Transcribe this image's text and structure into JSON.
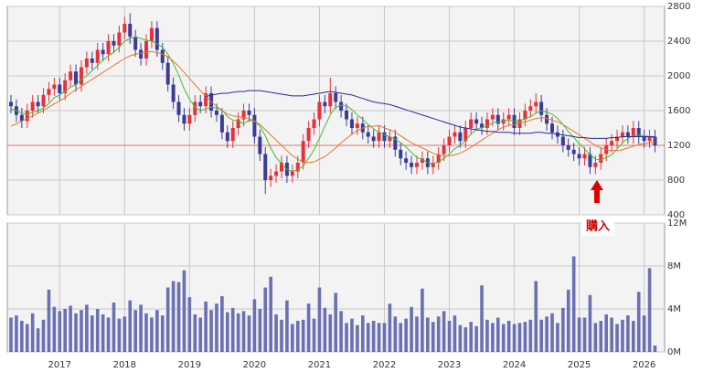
{
  "chart_data": [
    {
      "type": "candlestick",
      "categories": [
        null,
        null,
        null,
        null,
        null,
        null,
        null,
        null,
        null,
        "2017",
        null,
        null,
        null,
        null,
        null,
        null,
        null,
        null,
        null,
        null,
        null,
        "2018",
        null,
        null,
        null,
        null,
        null,
        null,
        null,
        null,
        null,
        null,
        null,
        "2019",
        null,
        null,
        null,
        null,
        null,
        null,
        null,
        null,
        null,
        null,
        null,
        "2020",
        null,
        null,
        null,
        null,
        null,
        null,
        null,
        null,
        null,
        null,
        null,
        "2021",
        null,
        null,
        null,
        null,
        null,
        null,
        null,
        null,
        null,
        null,
        null,
        "2022",
        null,
        null,
        null,
        null,
        null,
        null,
        null,
        null,
        null,
        null,
        null,
        "2023",
        null,
        null,
        null,
        null,
        null,
        null,
        null,
        null,
        null,
        null,
        null,
        "2024",
        null,
        null,
        null,
        null,
        null,
        null,
        null,
        null,
        null,
        null,
        null,
        "2025",
        null,
        null,
        null,
        null,
        null,
        null,
        null,
        null,
        null,
        null,
        null,
        "2026",
        null,
        null
      ],
      "open": [
        1700,
        1650,
        1550,
        1480,
        1600,
        1700,
        1650,
        1780,
        1850,
        1900,
        1800,
        1950,
        2050,
        1900,
        2100,
        2200,
        2150,
        2300,
        2250,
        2400,
        2350,
        2500,
        2600,
        2450,
        2300,
        2200,
        2400,
        2550,
        2300,
        2150,
        1900,
        1700,
        1550,
        1450,
        1550,
        1700,
        1650,
        1800,
        1600,
        1550,
        1350,
        1250,
        1400,
        1500,
        1600,
        1550,
        1300,
        1100,
        800,
        850,
        900,
        1000,
        850,
        900,
        1000,
        1250,
        1400,
        1500,
        1700,
        1650,
        1800,
        1700,
        1600,
        1500,
        1400,
        1450,
        1350,
        1300,
        1250,
        1350,
        1250,
        1300,
        1150,
        1050,
        1000,
        950,
        1000,
        1050,
        950,
        1000,
        1100,
        1200,
        1300,
        1350,
        1250,
        1400,
        1500,
        1450,
        1400,
        1500,
        1550,
        1450,
        1500,
        1550,
        1400,
        1500,
        1600,
        1650,
        1700,
        1550,
        1450,
        1350,
        1300,
        1200,
        1150,
        1100,
        1050,
        1100,
        950,
        1000,
        1100,
        1200,
        1250,
        1300,
        1350,
        1300,
        1400,
        1300,
        1250,
        1300
      ],
      "high": [
        1780,
        1730,
        1630,
        1680,
        1780,
        1780,
        1860,
        1930,
        1980,
        1980,
        2030,
        2130,
        2130,
        2180,
        2280,
        2280,
        2380,
        2380,
        2480,
        2480,
        2580,
        2680,
        2720,
        2530,
        2380,
        2480,
        2630,
        2630,
        2380,
        2230,
        1980,
        1780,
        1630,
        1630,
        1780,
        1780,
        1880,
        1880,
        1680,
        1630,
        1430,
        1480,
        1580,
        1680,
        1680,
        1630,
        1380,
        1180,
        930,
        980,
        1080,
        1080,
        980,
        1080,
        1330,
        1480,
        1580,
        1780,
        1780,
        1980,
        1880,
        1780,
        1680,
        1580,
        1530,
        1530,
        1430,
        1380,
        1430,
        1430,
        1380,
        1380,
        1230,
        1130,
        1080,
        1080,
        1130,
        1130,
        1080,
        1180,
        1280,
        1380,
        1430,
        1430,
        1480,
        1580,
        1580,
        1530,
        1580,
        1630,
        1630,
        1580,
        1630,
        1630,
        1580,
        1680,
        1730,
        1800,
        1780,
        1630,
        1530,
        1430,
        1380,
        1280,
        1230,
        1180,
        1180,
        1180,
        1080,
        1180,
        1280,
        1330,
        1380,
        1430,
        1430,
        1480,
        1480,
        1380,
        1380,
        1380
      ],
      "low": [
        1570,
        1470,
        1400,
        1400,
        1520,
        1570,
        1570,
        1700,
        1770,
        1720,
        1720,
        1870,
        1820,
        1820,
        2020,
        2070,
        2070,
        2170,
        2170,
        2270,
        2270,
        2420,
        2370,
        2220,
        2120,
        2120,
        2320,
        2220,
        2070,
        1820,
        1620,
        1470,
        1370,
        1370,
        1470,
        1570,
        1570,
        1520,
        1470,
        1270,
        1170,
        1170,
        1320,
        1420,
        1470,
        1220,
        1020,
        640,
        720,
        770,
        820,
        770,
        770,
        820,
        920,
        1170,
        1320,
        1420,
        1570,
        1570,
        1620,
        1520,
        1420,
        1320,
        1320,
        1270,
        1220,
        1170,
        1170,
        1170,
        1170,
        1070,
        970,
        920,
        870,
        870,
        920,
        870,
        870,
        920,
        1020,
        1120,
        1220,
        1170,
        1170,
        1320,
        1370,
        1320,
        1320,
        1420,
        1370,
        1370,
        1420,
        1320,
        1320,
        1420,
        1520,
        1570,
        1470,
        1370,
        1270,
        1220,
        1120,
        1070,
        1020,
        970,
        970,
        870,
        870,
        920,
        1020,
        1120,
        1170,
        1220,
        1220,
        1220,
        1220,
        1170,
        1170,
        1120
      ],
      "close": [
        1650,
        1550,
        1480,
        1600,
        1700,
        1650,
        1780,
        1850,
        1900,
        1800,
        1950,
        2050,
        1900,
        2100,
        2200,
        2150,
        2300,
        2250,
        2400,
        2350,
        2500,
        2600,
        2450,
        2300,
        2200,
        2400,
        2550,
        2300,
        2150,
        1900,
        1700,
        1550,
        1450,
        1550,
        1700,
        1650,
        1800,
        1600,
        1550,
        1350,
        1250,
        1400,
        1500,
        1600,
        1550,
        1300,
        1100,
        800,
        850,
        900,
        1000,
        850,
        900,
        1000,
        1250,
        1400,
        1500,
        1700,
        1650,
        1800,
        1700,
        1600,
        1500,
        1400,
        1450,
        1350,
        1300,
        1250,
        1350,
        1250,
        1300,
        1150,
        1050,
        1000,
        950,
        1000,
        1050,
        950,
        1000,
        1100,
        1200,
        1300,
        1350,
        1250,
        1400,
        1500,
        1450,
        1400,
        1500,
        1550,
        1450,
        1500,
        1550,
        1400,
        1500,
        1600,
        1650,
        1700,
        1550,
        1450,
        1350,
        1300,
        1200,
        1150,
        1100,
        1050,
        1100,
        950,
        1000,
        1100,
        1200,
        1250,
        1300,
        1350,
        1300,
        1400,
        1300,
        1250,
        1300,
        1200
      ],
      "up_color": "#e8303a",
      "down_color": "#3b3b9b",
      "moving_averages": [
        {
          "color": "#3fbf2f",
          "values": [
            1620,
            1600,
            1570,
            1560,
            1580,
            1600,
            1630,
            1680,
            1750,
            1780,
            1820,
            1870,
            1900,
            1960,
            2000,
            2060,
            2120,
            2180,
            2230,
            2270,
            2330,
            2400,
            2430,
            2450,
            2430,
            2410,
            2400,
            2370,
            2330,
            2250,
            2140,
            2010,
            1850,
            1730,
            1640,
            1600,
            1620,
            1640,
            1630,
            1610,
            1530,
            1490,
            1480,
            1450,
            1490,
            1480,
            1420,
            1310,
            1170,
            1060,
            990,
            920,
            900,
            920,
            960,
            1050,
            1150,
            1280,
            1420,
            1550,
            1640,
            1660,
            1660,
            1610,
            1550,
            1500,
            1440,
            1390,
            1350,
            1320,
            1300,
            1270,
            1230,
            1180,
            1120,
            1060,
            1040,
            1000,
            990,
            1010,
            1050,
            1100,
            1160,
            1200,
            1260,
            1330,
            1380,
            1410,
            1420,
            1460,
            1470,
            1480,
            1490,
            1480,
            1480,
            1510,
            1530,
            1570,
            1600,
            1580,
            1560,
            1510,
            1440,
            1360,
            1290,
            1220,
            1160,
            1090,
            1040,
            1030,
            1060,
            1090,
            1160,
            1230,
            1280,
            1310,
            1320,
            1310,
            1300,
            1280
          ]
        },
        {
          "color": "#e8772e",
          "values": [
            1420,
            1450,
            1480,
            1510,
            1540,
            1570,
            1600,
            1640,
            1680,
            1710,
            1750,
            1800,
            1840,
            1880,
            1920,
            1960,
            2000,
            2040,
            2080,
            2120,
            2160,
            2200,
            2230,
            2250,
            2260,
            2270,
            2280,
            2270,
            2250,
            2220,
            2170,
            2110,
            2040,
            1970,
            1900,
            1830,
            1770,
            1700,
            1650,
            1600,
            1560,
            1540,
            1530,
            1520,
            1510,
            1480,
            1440,
            1380,
            1320,
            1260,
            1200,
            1140,
            1080,
            1040,
            1010,
            1000,
            1010,
            1040,
            1070,
            1120,
            1170,
            1230,
            1280,
            1330,
            1370,
            1400,
            1420,
            1420,
            1430,
            1400,
            1380,
            1350,
            1310,
            1270,
            1230,
            1200,
            1170,
            1140,
            1110,
            1090,
            1080,
            1080,
            1090,
            1110,
            1140,
            1180,
            1220,
            1260,
            1300,
            1340,
            1380,
            1410,
            1430,
            1440,
            1460,
            1470,
            1490,
            1510,
            1520,
            1510,
            1490,
            1470,
            1440,
            1400,
            1360,
            1320,
            1280,
            1240,
            1200,
            1170,
            1150,
            1140,
            1140,
            1150,
            1170,
            1190,
            1210,
            1220,
            1230,
            1240
          ]
        },
        {
          "color": "#2a2a9a",
          "values": [
            null,
            null,
            null,
            null,
            null,
            null,
            null,
            null,
            null,
            null,
            null,
            null,
            null,
            null,
            null,
            null,
            null,
            null,
            null,
            null,
            null,
            null,
            null,
            null,
            null,
            null,
            null,
            null,
            null,
            null,
            null,
            null,
            null,
            null,
            null,
            null,
            1760,
            1780,
            1790,
            1800,
            1800,
            1810,
            1820,
            1820,
            1830,
            1830,
            1830,
            1820,
            1810,
            1800,
            1790,
            1780,
            1770,
            1770,
            1770,
            1780,
            1790,
            1800,
            1810,
            1820,
            1810,
            1800,
            1790,
            1780,
            1760,
            1740,
            1720,
            1700,
            1690,
            1680,
            1670,
            1650,
            1630,
            1610,
            1590,
            1570,
            1550,
            1530,
            1510,
            1490,
            1470,
            1450,
            1430,
            1410,
            1400,
            1390,
            1380,
            1370,
            1360,
            1360,
            1350,
            1350,
            1350,
            1340,
            1340,
            1340,
            1340,
            1350,
            1350,
            1340,
            1340,
            1330,
            1320,
            1310,
            1300,
            1290,
            1290,
            1280,
            1280,
            1280,
            1280,
            1290,
            1290,
            1300,
            1300,
            1300,
            1300,
            1300,
            1300,
            1300
          ]
        }
      ],
      "reference_line": {
        "value": 1200,
        "color": "#e87070"
      },
      "annotation": {
        "text": "購入",
        "color": "#e00000"
      },
      "ylim": [
        400,
        2800
      ],
      "yticks": [
        400,
        800,
        1200,
        1600,
        2000,
        2400,
        2800
      ],
      "grid": true
    },
    {
      "type": "bar",
      "color": "#6b6fb3",
      "values": [
        3.2,
        3.4,
        2.9,
        2.6,
        3.6,
        2.2,
        3.0,
        5.8,
        4.2,
        3.8,
        4.0,
        4.3,
        3.6,
        3.9,
        4.4,
        3.4,
        4.0,
        3.5,
        3.2,
        4.6,
        3.1,
        3.3,
        4.8,
        3.9,
        4.4,
        3.6,
        3.2,
        3.9,
        3.4,
        6.0,
        6.6,
        6.5,
        7.6,
        5.1,
        3.5,
        3.2,
        4.7,
        3.9,
        4.5,
        5.2,
        3.7,
        4.1,
        3.6,
        3.8,
        3.4,
        4.9,
        4.0,
        6.0,
        7.0,
        3.5,
        3.0,
        4.8,
        2.6,
        2.9,
        3.0,
        4.5,
        3.1,
        6.0,
        4.1,
        3.5,
        5.5,
        3.8,
        2.7,
        3.1,
        2.5,
        3.4,
        2.7,
        2.9,
        2.7,
        2.7,
        4.5,
        3.3,
        2.7,
        3.1,
        4.2,
        3.3,
        5.9,
        3.2,
        2.8,
        3.3,
        3.8,
        2.9,
        3.4,
        2.5,
        2.3,
        2.8,
        2.4,
        6.2,
        3.0,
        2.7,
        3.2,
        2.6,
        2.9,
        2.6,
        2.7,
        2.8,
        3.0,
        6.6,
        3.0,
        3.3,
        3.6,
        2.7,
        4.1,
        5.8,
        8.9,
        3.2,
        3.2,
        5.3,
        2.7,
        2.9,
        3.5,
        3.2,
        2.6,
        3.0,
        3.4,
        2.9,
        5.6,
        3.4,
        7.8,
        0.6
      ],
      "ylim": [
        0,
        12
      ],
      "yticks": [
        {
          "value": 0,
          "label": "0M"
        },
        {
          "value": 4,
          "label": "4M"
        },
        {
          "value": 8,
          "label": "8M"
        },
        {
          "value": 12,
          "label": "12M"
        }
      ],
      "grid": true
    }
  ]
}
